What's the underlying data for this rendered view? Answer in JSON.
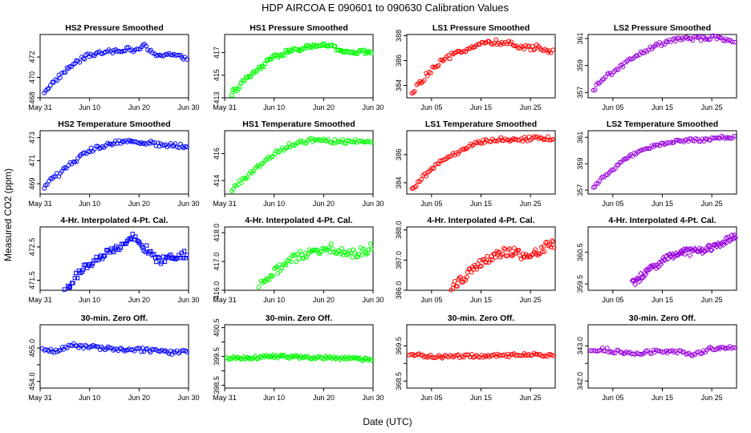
{
  "figure": {
    "title": "HDP    AIRCOA E    090601 to 090630    Calibration Values",
    "xlabel": "Date (UTC)",
    "ylabel": "Measured CO2 (ppm)"
  },
  "chart_data": [
    {
      "type": "scatter",
      "row": 0,
      "col": 0,
      "title": "HS2 Pressure Smoothed",
      "color": "#0000ff",
      "marker": "circle",
      "xlim": [
        31,
        61
      ],
      "ylim": [
        468,
        474.2
      ],
      "xticks": [
        31,
        41,
        51,
        61
      ],
      "xticklabels": [
        "May 31",
        "Jun 10",
        "Jun 20",
        "Jun 30"
      ],
      "yticks": [
        468,
        470,
        472
      ],
      "yticklabels": [
        "468",
        "470",
        "472"
      ],
      "anchors": [
        [
          31.8,
          468.6
        ],
        [
          33,
          469.2
        ],
        [
          36,
          470.6
        ],
        [
          38,
          471.4
        ],
        [
          41,
          472.2
        ],
        [
          45,
          472.5
        ],
        [
          48,
          472.8
        ],
        [
          50,
          472.6
        ],
        [
          52,
          473.1
        ],
        [
          54,
          472.2
        ],
        [
          57,
          472.3
        ],
        [
          59,
          472.0
        ],
        [
          61,
          471.9
        ]
      ],
      "noise": 0.22
    },
    {
      "type": "scatter",
      "row": 0,
      "col": 1,
      "title": "HS1 Pressure Smoothed",
      "color": "#00ff00",
      "marker": "square",
      "xlim": [
        31,
        61
      ],
      "ylim": [
        413,
        418.6
      ],
      "xticks": [
        31,
        41,
        51,
        61
      ],
      "xticklabels": [
        "May 31",
        "Jun 10",
        "Jun 20",
        "Jun 30"
      ],
      "yticks": [
        413,
        415,
        417
      ],
      "yticklabels": [
        "413",
        "415",
        "417"
      ],
      "anchors": [
        [
          32.4,
          413.4
        ],
        [
          35,
          414.5
        ],
        [
          38,
          415.6
        ],
        [
          41,
          416.6
        ],
        [
          44,
          417.1
        ],
        [
          47,
          417.4
        ],
        [
          50,
          417.7
        ],
        [
          52,
          417.6
        ],
        [
          55,
          417.1
        ],
        [
          58,
          417.0
        ],
        [
          61,
          417.1
        ]
      ],
      "noise": 0.2
    },
    {
      "type": "scatter",
      "row": 0,
      "col": 2,
      "title": "LS1 Pressure Smoothed",
      "color": "#ff0000",
      "marker": "circle",
      "xlim": [
        31,
        61
      ],
      "ylim": [
        383,
        388.1
      ],
      "xticks": [
        36,
        46,
        56
      ],
      "xticklabels": [
        "Jun 05",
        "Jun 15",
        "Jun 25"
      ],
      "yticks": [
        384,
        386,
        388
      ],
      "yticklabels": [
        "384",
        "386",
        "388"
      ],
      "anchors": [
        [
          32,
          383.2
        ],
        [
          33.5,
          384.2
        ],
        [
          36,
          385.2
        ],
        [
          38,
          385.9
        ],
        [
          41,
          386.6
        ],
        [
          44,
          387.1
        ],
        [
          47,
          387.4
        ],
        [
          50,
          387.5
        ],
        [
          52,
          387.3
        ],
        [
          55,
          387.0
        ],
        [
          58,
          387.1
        ],
        [
          60.5,
          386.7
        ]
      ],
      "noise": 0.22
    },
    {
      "type": "scatter",
      "row": 0,
      "col": 3,
      "title": "LS2 Pressure Smoothed",
      "color": "#9900dd",
      "marker": "circle",
      "xlim": [
        31,
        61
      ],
      "ylim": [
        356.6,
        361.3
      ],
      "xticks": [
        36,
        46,
        56
      ],
      "xticklabels": [
        "Jun 05",
        "Jun 15",
        "Jun 25"
      ],
      "yticks": [
        357,
        359,
        361
      ],
      "yticklabels": [
        "357",
        "359",
        "361"
      ],
      "anchors": [
        [
          32,
          357.1
        ],
        [
          33.5,
          357.9
        ],
        [
          36,
          358.5
        ],
        [
          39,
          359.3
        ],
        [
          42,
          360.0
        ],
        [
          45,
          360.5
        ],
        [
          48,
          360.9
        ],
        [
          51,
          361.0
        ],
        [
          54,
          361.0
        ],
        [
          57,
          361.1
        ],
        [
          60.5,
          360.8
        ]
      ],
      "noise": 0.15
    },
    {
      "type": "scatter",
      "row": 1,
      "col": 0,
      "title": "HS2 Temperature Smoothed",
      "color": "#0000ff",
      "marker": "circle",
      "xlim": [
        31,
        61
      ],
      "ylim": [
        468.1,
        473.6
      ],
      "xticks": [
        31,
        41,
        51,
        61
      ],
      "xticklabels": [
        "May 31",
        "Jun 10",
        "Jun 20",
        "Jun 30"
      ],
      "yticks": [
        469,
        471,
        473
      ],
      "yticklabels": [
        "469",
        "471",
        "473"
      ],
      "anchors": [
        [
          31.8,
          468.6
        ],
        [
          33,
          469.3
        ],
        [
          35,
          469.9
        ],
        [
          38,
          471.0
        ],
        [
          41,
          471.9
        ],
        [
          44,
          472.3
        ],
        [
          47,
          472.6
        ],
        [
          50,
          472.7
        ],
        [
          52,
          472.6
        ],
        [
          55,
          472.4
        ],
        [
          58,
          472.3
        ],
        [
          61,
          472.3
        ]
      ],
      "noise": 0.2
    },
    {
      "type": "scatter",
      "row": 1,
      "col": 1,
      "title": "HS1 Temperature Smoothed",
      "color": "#00ff00",
      "marker": "circle",
      "xlim": [
        31,
        61
      ],
      "ylim": [
        413,
        417.7
      ],
      "xticks": [
        31,
        41,
        51,
        61
      ],
      "xticklabels": [
        "May 31",
        "Jun 10",
        "Jun 20",
        "Jun 30"
      ],
      "yticks": [
        414,
        416
      ],
      "yticklabels": [
        "414",
        "416"
      ],
      "anchors": [
        [
          32.4,
          413.3
        ],
        [
          35,
          414.2
        ],
        [
          38,
          415.1
        ],
        [
          41,
          416.0
        ],
        [
          44,
          416.6
        ],
        [
          47,
          416.9
        ],
        [
          50,
          417.1
        ],
        [
          53,
          416.9
        ],
        [
          56,
          416.9
        ],
        [
          59,
          417.0
        ],
        [
          61,
          416.9
        ]
      ],
      "noise": 0.16
    },
    {
      "type": "scatter",
      "row": 1,
      "col": 2,
      "title": "LS1 Temperature Smoothed",
      "color": "#ff0000",
      "marker": "circle",
      "xlim": [
        31,
        61
      ],
      "ylim": [
        383.2,
        387.7
      ],
      "xticks": [
        36,
        46,
        56
      ],
      "xticklabels": [
        "Jun 05",
        "Jun 15",
        "Jun 25"
      ],
      "yticks": [
        384,
        386
      ],
      "yticklabels": [
        "384",
        "386"
      ],
      "anchors": [
        [
          32,
          383.4
        ],
        [
          34,
          384.3
        ],
        [
          37,
          385.3
        ],
        [
          40,
          385.9
        ],
        [
          43,
          386.5
        ],
        [
          46,
          386.9
        ],
        [
          49,
          387.1
        ],
        [
          52,
          387.1
        ],
        [
          55,
          387.1
        ],
        [
          58,
          387.2
        ],
        [
          60.5,
          387.1
        ]
      ],
      "noise": 0.15
    },
    {
      "type": "scatter",
      "row": 1,
      "col": 3,
      "title": "LS2 Temperature Smoothed",
      "color": "#9900dd",
      "marker": "circle",
      "xlim": [
        31,
        61
      ],
      "ylim": [
        356.7,
        361.5
      ],
      "xticks": [
        36,
        46,
        56
      ],
      "xticklabels": [
        "Jun 05",
        "Jun 15",
        "Jun 25"
      ],
      "yticks": [
        357,
        359,
        361
      ],
      "yticklabels": [
        "357",
        "359",
        "361"
      ],
      "anchors": [
        [
          32,
          357.1
        ],
        [
          34,
          358.0
        ],
        [
          37,
          358.9
        ],
        [
          40,
          359.7
        ],
        [
          43,
          360.2
        ],
        [
          46,
          360.5
        ],
        [
          49,
          360.7
        ],
        [
          52,
          360.8
        ],
        [
          55,
          360.8
        ],
        [
          58,
          361.0
        ],
        [
          60.5,
          361.0
        ]
      ],
      "noise": 0.12
    },
    {
      "type": "scatter",
      "row": 2,
      "col": 0,
      "title": "4-Hr. Interpolated 4-Pt. Cal.",
      "color": "#0000ff",
      "marker": "square",
      "xlim": [
        31,
        61
      ],
      "ylim": [
        471.2,
        473.1
      ],
      "xticks": [
        31,
        41,
        51,
        61
      ],
      "xticklabels": [
        "May 31",
        "Jun 10",
        "Jun 20",
        "Jun 30"
      ],
      "yticks": [
        471.5,
        472.5
      ],
      "yticklabels": [
        "471.5",
        "472.5"
      ],
      "anchors": [
        [
          36,
          471.2
        ],
        [
          38,
          471.6
        ],
        [
          41,
          472.0
        ],
        [
          44,
          472.3
        ],
        [
          47,
          472.5
        ],
        [
          49.5,
          472.8
        ],
        [
          52,
          472.5
        ],
        [
          55,
          472.1
        ],
        [
          58,
          472.2
        ],
        [
          61,
          472.3
        ]
      ],
      "noise": 0.12
    },
    {
      "type": "scatter",
      "row": 2,
      "col": 1,
      "title": "4-Hr. Interpolated 4-Pt. Cal.",
      "color": "#00ff00",
      "marker": "circle",
      "xlim": [
        31,
        61
      ],
      "ylim": [
        416,
        418.2
      ],
      "xticks": [
        31,
        41,
        51,
        61
      ],
      "xticklabels": [
        "May 31",
        "Jun 10",
        "Jun 20",
        "Jun 30"
      ],
      "yticks": [
        416,
        417,
        418
      ],
      "yticklabels": [
        "416.0",
        "417.0",
        "418.0"
      ],
      "anchors": [
        [
          37.6,
          416.0
        ],
        [
          40,
          416.5
        ],
        [
          43,
          416.9
        ],
        [
          46,
          417.2
        ],
        [
          49,
          417.3
        ],
        [
          52,
          417.5
        ],
        [
          55,
          417.3
        ],
        [
          58,
          417.3
        ],
        [
          61,
          417.5
        ]
      ],
      "noise": 0.16
    },
    {
      "type": "scatter",
      "row": 2,
      "col": 2,
      "title": "4-Hr. Interpolated 4-Pt. Cal.",
      "color": "#ff0000",
      "marker": "circle",
      "xlim": [
        31,
        61
      ],
      "ylim": [
        386,
        388.1
      ],
      "xticks": [
        36,
        46,
        56
      ],
      "xticklabels": [
        "Jun 05",
        "Jun 15",
        "Jun 25"
      ],
      "yticks": [
        386,
        387,
        388
      ],
      "yticklabels": [
        "386.0",
        "387.0",
        "388.0"
      ],
      "anchors": [
        [
          40,
          386.1
        ],
        [
          43,
          386.5
        ],
        [
          46,
          386.9
        ],
        [
          49,
          387.2
        ],
        [
          52,
          387.3
        ],
        [
          55,
          387.1
        ],
        [
          58,
          387.3
        ],
        [
          60,
          387.6
        ],
        [
          61,
          387.4
        ]
      ],
      "noise": 0.15
    },
    {
      "type": "scatter",
      "row": 2,
      "col": 3,
      "title": "4-Hr. Interpolated 4-Pt. Cal.",
      "color": "#9900dd",
      "marker": "diamond",
      "xlim": [
        31,
        61
      ],
      "ylim": [
        359.3,
        361.3
      ],
      "xticks": [
        36,
        46,
        56
      ],
      "xticklabels": [
        "Jun 05",
        "Jun 15",
        "Jun 25"
      ],
      "yticks": [
        359.5,
        360.5
      ],
      "yticklabels": [
        "359.5",
        "360.5"
      ],
      "anchors": [
        [
          40,
          359.5
        ],
        [
          43,
          359.9
        ],
        [
          46,
          360.2
        ],
        [
          49,
          360.5
        ],
        [
          52,
          360.5
        ],
        [
          55,
          360.6
        ],
        [
          58,
          360.8
        ],
        [
          61,
          361.0
        ]
      ],
      "noise": 0.11
    },
    {
      "type": "scatter",
      "row": 3,
      "col": 0,
      "title": "30-min. Zero Off.",
      "color": "#0000ff",
      "marker": "circle",
      "xlim": [
        31,
        61
      ],
      "ylim": [
        453.8,
        455.7
      ],
      "xticks": [
        31,
        41,
        51,
        61
      ],
      "xticklabels": [
        "May 31",
        "Jun 10",
        "Jun 20",
        "Jun 30"
      ],
      "yticks": [
        454,
        454.5,
        455
      ],
      "yticklabels": [
        "454.0",
        "",
        "455.0"
      ],
      "anchors": [
        [
          31.5,
          454.95
        ],
        [
          34,
          454.9
        ],
        [
          37,
          455.1
        ],
        [
          40,
          455.05
        ],
        [
          44,
          455.0
        ],
        [
          48,
          454.95
        ],
        [
          52,
          454.95
        ],
        [
          55,
          454.9
        ],
        [
          58,
          454.85
        ],
        [
          61,
          454.9
        ]
      ],
      "noise": 0.06
    },
    {
      "type": "scatter",
      "row": 3,
      "col": 1,
      "title": "30-min. Zero Off.",
      "color": "#00ff00",
      "marker": "diamond",
      "xlim": [
        31,
        61
      ],
      "ylim": [
        398.4,
        400.6
      ],
      "xticks": [
        31,
        41,
        51,
        61
      ],
      "xticklabels": [
        "May 31",
        "Jun 10",
        "Jun 20",
        "Jun 30"
      ],
      "yticks": [
        398.5,
        399,
        399.5,
        400,
        400.5
      ],
      "yticklabels": [
        "398.5",
        "",
        "399.5",
        "",
        "400.5"
      ],
      "anchors": [
        [
          31.5,
          399.45
        ],
        [
          36,
          399.45
        ],
        [
          41,
          399.5
        ],
        [
          46,
          399.48
        ],
        [
          51,
          399.45
        ],
        [
          56,
          399.42
        ],
        [
          61,
          399.38
        ]
      ],
      "noise": 0.05
    },
    {
      "type": "scatter",
      "row": 3,
      "col": 2,
      "title": "30-min. Zero Off.",
      "color": "#ff0000",
      "marker": "circle",
      "xlim": [
        31,
        61
      ],
      "ylim": [
        368.3,
        370.1
      ],
      "xticks": [
        36,
        46,
        56
      ],
      "xticklabels": [
        "Jun 05",
        "Jun 15",
        "Jun 25"
      ],
      "yticks": [
        368.5,
        369,
        369.5
      ],
      "yticklabels": [
        "368.5",
        "",
        "369.5"
      ],
      "anchors": [
        [
          31.5,
          369.25
        ],
        [
          36,
          369.2
        ],
        [
          41,
          369.2
        ],
        [
          46,
          369.22
        ],
        [
          51,
          369.22
        ],
        [
          56,
          369.25
        ],
        [
          61,
          369.22
        ]
      ],
      "noise": 0.05
    },
    {
      "type": "scatter",
      "row": 3,
      "col": 3,
      "title": "30-min. Zero Off.",
      "color": "#9900dd",
      "marker": "circle",
      "xlim": [
        31,
        61
      ],
      "ylim": [
        341.8,
        343.6
      ],
      "xticks": [
        36,
        46,
        56
      ],
      "xticklabels": [
        "Jun 05",
        "Jun 15",
        "Jun 25"
      ],
      "yticks": [
        342,
        342.5,
        343
      ],
      "yticklabels": [
        "342.0",
        "",
        "343.0"
      ],
      "anchors": [
        [
          31.5,
          342.9
        ],
        [
          34,
          342.9
        ],
        [
          38,
          342.8
        ],
        [
          42,
          342.8
        ],
        [
          46,
          342.85
        ],
        [
          50,
          342.85
        ],
        [
          52,
          342.7
        ],
        [
          55,
          342.9
        ],
        [
          58,
          342.95
        ],
        [
          61,
          342.95
        ]
      ],
      "noise": 0.06
    }
  ]
}
